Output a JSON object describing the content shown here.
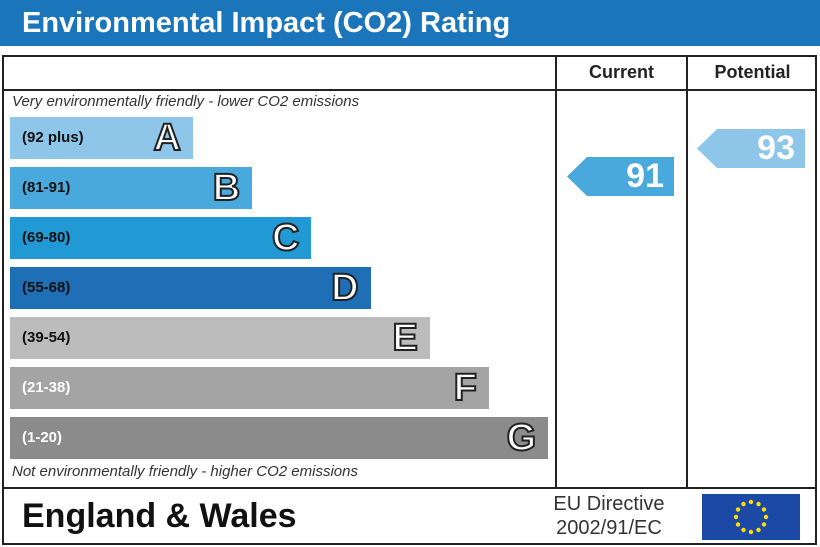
{
  "title": "Environmental Impact (CO2) Rating",
  "columns": {
    "current": "Current",
    "potential": "Potential"
  },
  "top_note": "Very environmentally friendly - lower CO2 emissions",
  "bottom_note": "Not environmentally friendly - higher CO2 emissions",
  "footer": {
    "region": "England & Wales",
    "directive_line1": "EU Directive",
    "directive_line2": "2002/91/EC",
    "flag_icon": "eu-flag-icon"
  },
  "chart_data": {
    "type": "bar",
    "title": "Environmental Impact (CO2) Rating",
    "bands": [
      {
        "letter": "A",
        "range": "(92 plus)",
        "color": "#8dc6e8"
      },
      {
        "letter": "B",
        "range": "(81-91)",
        "color": "#4aa9dc"
      },
      {
        "letter": "C",
        "range": "(69-80)",
        "color": "#2199d5"
      },
      {
        "letter": "D",
        "range": "(55-68)",
        "color": "#1f6fb6"
      },
      {
        "letter": "E",
        "range": "(39-54)",
        "color": "#bcbcbc"
      },
      {
        "letter": "F",
        "range": "(21-38)",
        "color": "#a4a4a4"
      },
      {
        "letter": "G",
        "range": "(1-20)",
        "color": "#8b8b8b"
      }
    ],
    "current": {
      "value": 91,
      "band": "B",
      "color": "#4aa9dc"
    },
    "potential": {
      "value": 93,
      "band": "A",
      "color": "#8dc6e8"
    }
  }
}
